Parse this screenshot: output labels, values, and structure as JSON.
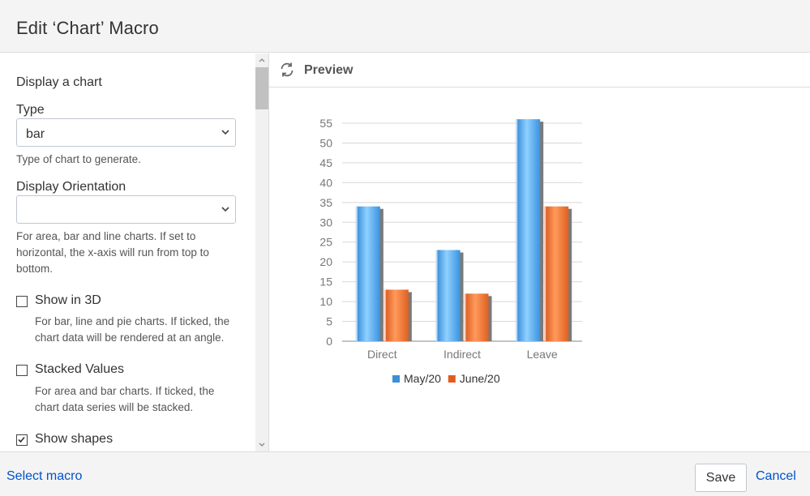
{
  "dialog": {
    "title": "Edit ‘Chart’ Macro"
  },
  "form": {
    "section_title": "Display a chart",
    "type": {
      "label": "Type",
      "value": "bar",
      "help": "Type of chart to generate."
    },
    "orientation": {
      "label": "Display Orientation",
      "value": "",
      "help": "For area, bar and line charts. If set to horizontal, the x-axis will run from top to bottom."
    },
    "show_3d": {
      "label": "Show in 3D",
      "checked": false,
      "help": "For bar, line and pie charts. If ticked, the chart data will be rendered at an angle."
    },
    "stacked": {
      "label": "Stacked Values",
      "checked": false,
      "help": "For area and bar charts. If ticked, the chart data series will be stacked."
    },
    "show_shapes": {
      "label": "Show shapes",
      "checked": true
    }
  },
  "preview": {
    "title": "Preview",
    "refresh_icon": "refresh-icon"
  },
  "chart_data": {
    "type": "bar",
    "categories": [
      "Direct",
      "Indirect",
      "Leave"
    ],
    "series": [
      {
        "name": "May/20",
        "values": [
          34,
          23,
          56
        ],
        "color": "#3d8fd6"
      },
      {
        "name": "June/20",
        "values": [
          13,
          12,
          34
        ],
        "color": "#e35c1b"
      }
    ],
    "ylim": [
      0,
      55
    ],
    "yticks": [
      "0",
      "5",
      "10",
      "15",
      "20",
      "25",
      "30",
      "35",
      "40",
      "45",
      "50",
      "55"
    ],
    "grid": true,
    "legend": "bottom",
    "style": "3d"
  },
  "footer": {
    "select_macro": "Select macro",
    "save": "Save",
    "cancel": "Cancel"
  }
}
